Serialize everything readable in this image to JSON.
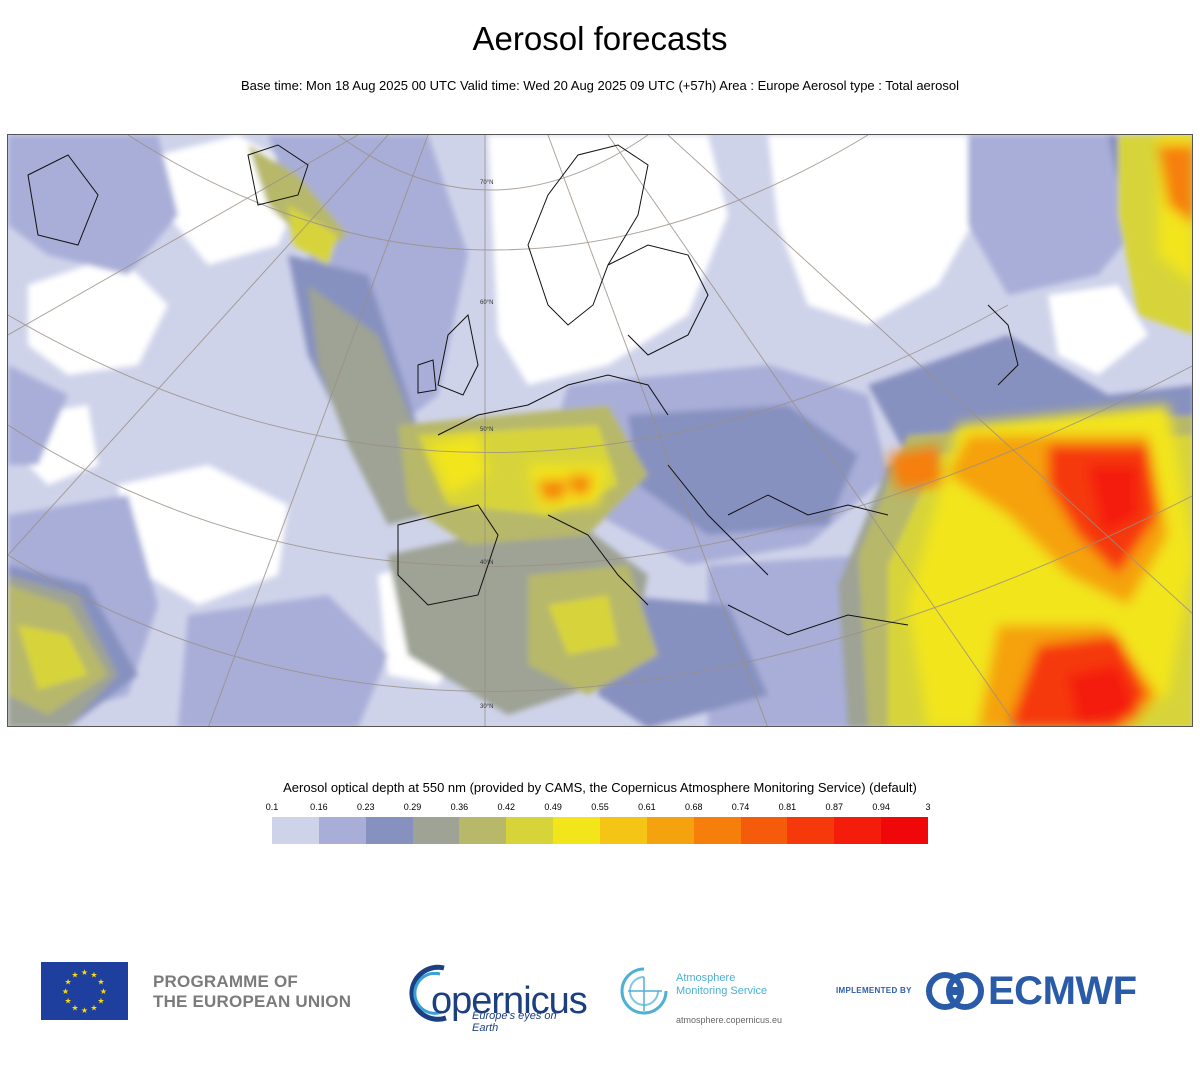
{
  "header": {
    "title": "Aerosol forecasts",
    "subtitle": "Base time: Mon 18 Aug 2025 00 UTC Valid time: Wed 20 Aug 2025 09 UTC (+57h) Area : Europe Aerosol type : Total aerosol"
  },
  "map": {
    "area": "Europe",
    "variable": "Total aerosol",
    "graticule_labels": [
      "70°N",
      "60°N",
      "50°N",
      "40°N",
      "30°N"
    ]
  },
  "legend": {
    "title": "Aerosol optical depth at 550 nm (provided by CAMS, the Copernicus Atmosphere Monitoring Service) (default)",
    "ticks": [
      "0.1",
      "0.16",
      "0.23",
      "0.29",
      "0.36",
      "0.42",
      "0.49",
      "0.55",
      "0.61",
      "0.68",
      "0.74",
      "0.81",
      "0.87",
      "0.94",
      "3"
    ],
    "colors": [
      "#cfd3ea",
      "#a8aed8",
      "#8791c0",
      "#9ea395",
      "#b7b86a",
      "#d7d43a",
      "#f2e51a",
      "#f4c514",
      "#f5a20f",
      "#f67f0c",
      "#f65a0b",
      "#f6390b",
      "#f41d0b",
      "#f0070a"
    ]
  },
  "footer": {
    "eu_line1": "PROGRAMME OF",
    "eu_line2": "THE EUROPEAN UNION",
    "copernicus": "opernicus",
    "copernicus_tagline": "Europe's eyes on Earth",
    "cams_line1": "Atmosphere",
    "cams_line2": "Monitoring Service",
    "cams_url": "atmosphere.copernicus.eu",
    "implemented_by": "IMPLEMENTED BY",
    "ecmwf": "ECMWF"
  }
}
